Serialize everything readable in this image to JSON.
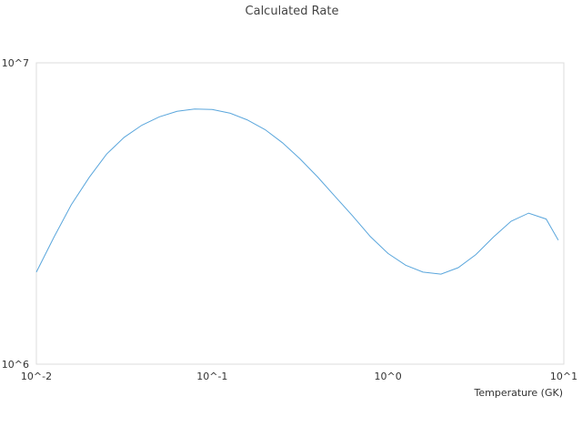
{
  "chart_data": {
    "type": "line",
    "title": "Calculated Rate",
    "xlabel": "Temperature (GK)",
    "ylabel": "",
    "x_scale": "log",
    "y_scale": "log",
    "xlim": [
      0.01,
      10
    ],
    "ylim": [
      1000000,
      10000000
    ],
    "x_ticks": [
      "10^-2",
      "10^-1",
      "10^0",
      "10^1"
    ],
    "y_ticks": [
      "10^6",
      "10^7"
    ],
    "grid": false,
    "legend": "none",
    "line_color": "#5aa6dc",
    "series": [
      {
        "x": [
          0.01,
          0.0126,
          0.0158,
          0.02,
          0.0251,
          0.0316,
          0.0398,
          0.0501,
          0.0631,
          0.0794,
          0.1,
          0.126,
          0.158,
          0.2,
          0.251,
          0.316,
          0.398,
          0.501,
          0.631,
          0.794,
          1.0,
          1.26,
          1.58,
          2.0,
          2.51,
          3.16,
          3.98,
          5.01,
          6.31,
          7.94,
          9.3
        ],
        "y": [
          2020000,
          2640000,
          3380000,
          4170000,
          4980000,
          5660000,
          6210000,
          6620000,
          6900000,
          7030000,
          7000000,
          6810000,
          6470000,
          6000000,
          5430000,
          4800000,
          4180000,
          3600000,
          3100000,
          2650000,
          2330000,
          2130000,
          2020000,
          1990000,
          2090000,
          2310000,
          2640000,
          2980000,
          3170000,
          3030000,
          2580000
        ]
      }
    ]
  }
}
